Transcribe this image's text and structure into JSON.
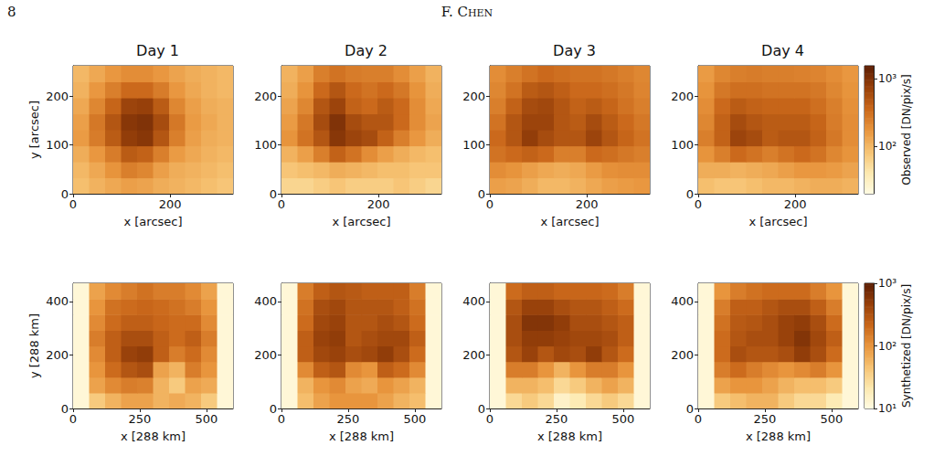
{
  "header": {
    "page": "8",
    "author": "F. Chen"
  },
  "chart_data": [
    {
      "type": "heatmap",
      "title": "Day 1",
      "xlabel": "x [arcsec]",
      "ylabel": "y [arcsec]",
      "xlim": [
        0,
        330
      ],
      "ylim": [
        0,
        262
      ],
      "xticks": [
        0,
        200
      ],
      "yticks": [
        0,
        100,
        200
      ],
      "cells": [
        [
          90,
          110,
          130,
          150,
          140,
          120,
          110,
          100,
          90,
          80
        ],
        [
          100,
          130,
          180,
          250,
          220,
          150,
          120,
          110,
          100,
          90
        ],
        [
          120,
          170,
          260,
          450,
          400,
          250,
          160,
          130,
          110,
          100
        ],
        [
          160,
          260,
          450,
          800,
          900,
          500,
          250,
          150,
          120,
          110
        ],
        [
          150,
          280,
          500,
          900,
          1000,
          600,
          280,
          160,
          130,
          110
        ],
        [
          130,
          220,
          380,
          700,
          750,
          450,
          220,
          150,
          120,
          110
        ],
        [
          110,
          170,
          250,
          350,
          350,
          260,
          170,
          130,
          110,
          100
        ],
        [
          100,
          130,
          170,
          200,
          200,
          170,
          140,
          120,
          110,
          100
        ]
      ]
    },
    {
      "type": "heatmap",
      "title": "Day 2",
      "xlabel": "x [arcsec]",
      "xlim": [
        0,
        330
      ],
      "ylim": [
        0,
        262
      ],
      "xticks": [
        0,
        200
      ],
      "yticks": [
        0,
        100,
        200
      ],
      "cells": [
        [
          60,
          60,
          70,
          80,
          70,
          70,
          70,
          80,
          70,
          60
        ],
        [
          80,
          90,
          100,
          120,
          110,
          100,
          90,
          90,
          80,
          80
        ],
        [
          110,
          150,
          250,
          400,
          300,
          200,
          150,
          120,
          100,
          90
        ],
        [
          180,
          300,
          500,
          900,
          700,
          600,
          400,
          250,
          170,
          120
        ],
        [
          160,
          280,
          600,
          1000,
          600,
          500,
          500,
          350,
          200,
          140
        ],
        [
          140,
          220,
          500,
          700,
          400,
          350,
          450,
          350,
          200,
          130
        ],
        [
          120,
          180,
          350,
          500,
          350,
          300,
          350,
          280,
          180,
          120
        ],
        [
          110,
          150,
          250,
          300,
          260,
          250,
          250,
          200,
          150,
          110
        ]
      ]
    },
    {
      "type": "heatmap",
      "title": "Day 3",
      "xlabel": "x [arcsec]",
      "xlim": [
        0,
        330
      ],
      "ylim": [
        0,
        262
      ],
      "xticks": [
        0,
        200
      ],
      "yticks": [
        0,
        100,
        200
      ],
      "cells": [
        [
          150,
          140,
          120,
          100,
          100,
          110,
          130,
          150,
          160,
          170
        ],
        [
          200,
          180,
          150,
          130,
          120,
          130,
          160,
          190,
          200,
          200
        ],
        [
          300,
          350,
          400,
          350,
          250,
          250,
          350,
          320,
          280,
          250
        ],
        [
          350,
          500,
          800,
          600,
          500,
          500,
          700,
          500,
          380,
          300
        ],
        [
          300,
          500,
          700,
          700,
          500,
          450,
          600,
          450,
          350,
          280
        ],
        [
          250,
          400,
          600,
          650,
          500,
          400,
          450,
          380,
          300,
          250
        ],
        [
          220,
          300,
          450,
          500,
          420,
          350,
          350,
          320,
          280,
          230
        ],
        [
          200,
          250,
          300,
          350,
          320,
          300,
          300,
          280,
          250,
          220
        ]
      ]
    },
    {
      "type": "heatmap",
      "title": "Day 4",
      "xlabel": "x [arcsec]",
      "xlim": [
        0,
        330
      ],
      "ylim": [
        0,
        262
      ],
      "xticks": [
        0,
        200
      ],
      "yticks": [
        0,
        100,
        200
      ],
      "cells": [
        [
          90,
          80,
          80,
          90,
          100,
          100,
          110,
          120,
          120,
          110
        ],
        [
          120,
          120,
          110,
          120,
          130,
          150,
          170,
          170,
          160,
          140
        ],
        [
          180,
          250,
          350,
          300,
          250,
          300,
          350,
          300,
          220,
          180
        ],
        [
          250,
          400,
          700,
          600,
          450,
          500,
          500,
          400,
          280,
          200
        ],
        [
          220,
          400,
          600,
          500,
          450,
          450,
          450,
          380,
          260,
          200
        ],
        [
          200,
          350,
          450,
          400,
          380,
          380,
          380,
          320,
          250,
          190
        ],
        [
          180,
          280,
          320,
          320,
          300,
          300,
          300,
          280,
          220,
          180
        ],
        [
          160,
          220,
          250,
          260,
          250,
          250,
          240,
          230,
          200,
          170
        ]
      ],
      "colorbar": {
        "label": "Observed [DN/pix/s]",
        "log": true,
        "range": [
          20,
          1550
        ],
        "ticks": [
          {
            "value": 100,
            "label": "10²"
          },
          {
            "value": 1000,
            "label": "10³"
          }
        ]
      }
    },
    {
      "type": "heatmap",
      "xlabel": "x [288 km]",
      "ylabel": "y [288 km]",
      "xlim": [
        0,
        600
      ],
      "ylim": [
        0,
        468
      ],
      "xticks": [
        0,
        250,
        500
      ],
      "yticks": [
        0,
        200,
        400
      ],
      "cells": [
        [
          12,
          40,
          60,
          80,
          80,
          60,
          70,
          60,
          40,
          12
        ],
        [
          12,
          80,
          120,
          150,
          140,
          60,
          40,
          80,
          70,
          12
        ],
        [
          12,
          100,
          200,
          300,
          350,
          80,
          60,
          150,
          100,
          12
        ],
        [
          12,
          120,
          250,
          450,
          500,
          250,
          150,
          200,
          120,
          12
        ],
        [
          12,
          150,
          250,
          350,
          350,
          250,
          200,
          250,
          150,
          12
        ],
        [
          12,
          120,
          200,
          250,
          250,
          220,
          200,
          200,
          120,
          12
        ],
        [
          12,
          100,
          180,
          200,
          220,
          200,
          180,
          150,
          100,
          12
        ],
        [
          12,
          80,
          120,
          150,
          180,
          150,
          150,
          120,
          80,
          12
        ]
      ]
    },
    {
      "type": "heatmap",
      "xlabel": "x [288 km]",
      "xlim": [
        0,
        600
      ],
      "ylim": [
        0,
        468
      ],
      "xticks": [
        0,
        250,
        500
      ],
      "yticks": [
        0,
        200,
        400
      ],
      "cells": [
        [
          12,
          50,
          80,
          100,
          100,
          100,
          80,
          60,
          50,
          12
        ],
        [
          12,
          60,
          100,
          120,
          80,
          70,
          100,
          80,
          60,
          12
        ],
        [
          12,
          120,
          250,
          300,
          120,
          100,
          250,
          200,
          120,
          12
        ],
        [
          12,
          250,
          400,
          450,
          350,
          400,
          500,
          350,
          200,
          12
        ],
        [
          12,
          250,
          450,
          500,
          300,
          350,
          400,
          400,
          250,
          12
        ],
        [
          12,
          200,
          400,
          450,
          300,
          300,
          350,
          300,
          200,
          12
        ],
        [
          12,
          180,
          350,
          400,
          300,
          300,
          300,
          250,
          180,
          12
        ],
        [
          12,
          150,
          250,
          300,
          280,
          250,
          250,
          250,
          150,
          12
        ]
      ]
    },
    {
      "type": "heatmap",
      "xlabel": "x [288 km]",
      "xlim": [
        0,
        600
      ],
      "ylim": [
        0,
        468
      ],
      "xticks": [
        0,
        250,
        500
      ],
      "yticks": [
        0,
        200,
        400
      ],
      "cells": [
        [
          12,
          30,
          40,
          30,
          15,
          20,
          30,
          40,
          30,
          12
        ],
        [
          12,
          60,
          60,
          50,
          30,
          40,
          60,
          80,
          60,
          12
        ],
        [
          12,
          150,
          150,
          100,
          60,
          100,
          150,
          150,
          100,
          12
        ],
        [
          12,
          300,
          450,
          300,
          400,
          350,
          500,
          300,
          200,
          12
        ],
        [
          12,
          350,
          500,
          500,
          450,
          400,
          400,
          350,
          250,
          12
        ],
        [
          12,
          350,
          600,
          600,
          500,
          350,
          350,
          300,
          250,
          12
        ],
        [
          12,
          300,
          450,
          450,
          350,
          300,
          300,
          250,
          200,
          12
        ],
        [
          12,
          200,
          250,
          250,
          220,
          220,
          220,
          200,
          150,
          12
        ]
      ]
    },
    {
      "type": "heatmap",
      "xlabel": "x [288 km]",
      "xlim": [
        0,
        600
      ],
      "ylim": [
        0,
        468
      ],
      "xticks": [
        0,
        250,
        500
      ],
      "yticks": [
        0,
        200,
        400
      ],
      "cells": [
        [
          12,
          40,
          50,
          60,
          60,
          40,
          30,
          30,
          20,
          12
        ],
        [
          12,
          80,
          100,
          100,
          80,
          60,
          50,
          50,
          40,
          12
        ],
        [
          12,
          150,
          200,
          150,
          120,
          100,
          120,
          150,
          100,
          12
        ],
        [
          12,
          200,
          350,
          300,
          300,
          350,
          500,
          350,
          200,
          12
        ],
        [
          12,
          200,
          300,
          350,
          350,
          450,
          600,
          400,
          250,
          12
        ],
        [
          12,
          180,
          280,
          300,
          350,
          450,
          500,
          350,
          200,
          12
        ],
        [
          12,
          150,
          250,
          250,
          300,
          350,
          350,
          250,
          150,
          12
        ],
        [
          12,
          100,
          150,
          180,
          200,
          200,
          200,
          150,
          100,
          12
        ]
      ],
      "colorbar": {
        "label": "Synthetized [DN/pix/s]",
        "log": true,
        "range": [
          10,
          1000
        ],
        "ticks": [
          {
            "value": 10,
            "label": "10¹"
          },
          {
            "value": 100,
            "label": "10²"
          },
          {
            "value": 1000,
            "label": "10³"
          }
        ]
      }
    }
  ]
}
